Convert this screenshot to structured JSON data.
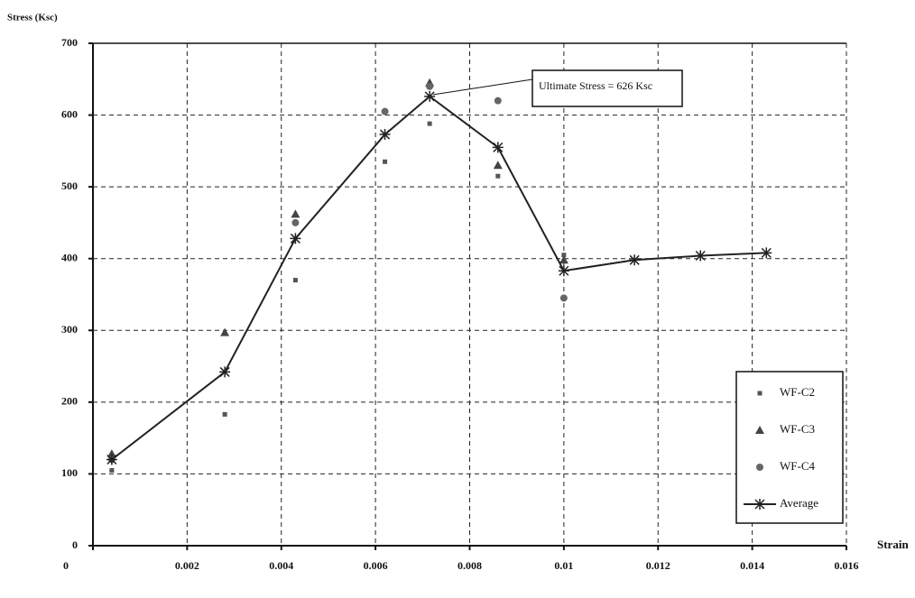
{
  "chart_data": {
    "type": "scatter",
    "y_label": "Stress (Ksc)",
    "x_label": "Strain",
    "x": [
      0.0004,
      0.0028,
      0.0043,
      0.0062,
      0.00715,
      0.0086,
      0.01,
      0.0115,
      0.0129,
      0.0143
    ],
    "series": [
      {
        "name": "WF-C2",
        "color": "#555555",
        "marker": "square",
        "values": [
          105,
          183,
          370,
          535,
          588,
          515,
          405,
          null,
          null,
          null
        ]
      },
      {
        "name": "WF-C3",
        "color": "#444444",
        "marker": "triangle",
        "values": [
          128,
          297,
          462,
          null,
          645,
          530,
          398,
          null,
          null,
          null
        ]
      },
      {
        "name": "WF-C4",
        "color": "#666666",
        "marker": "circle",
        "values": [
          120,
          null,
          450,
          605,
          640,
          620,
          345,
          null,
          null,
          null
        ]
      },
      {
        "name": "Average",
        "color": "#222222",
        "marker": "star",
        "line": true,
        "values": [
          120,
          242,
          428,
          573,
          626,
          555,
          383,
          398,
          404,
          408
        ]
      }
    ],
    "annotation": "Ultimate Stress = 626 Ksc",
    "xlim": [
      0,
      0.016
    ],
    "xticks": [
      0,
      0.002,
      0.004,
      0.006,
      0.008,
      0.01,
      0.012,
      0.014,
      0.016
    ],
    "ylim": [
      0,
      700
    ],
    "yticks": [
      0,
      100,
      200,
      300,
      400,
      500,
      600,
      700
    ],
    "grid": true,
    "legend": "bottom-right"
  }
}
